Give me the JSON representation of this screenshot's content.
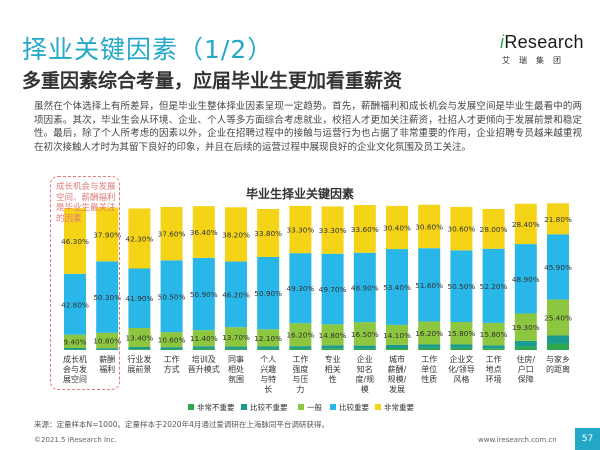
{
  "page": {
    "title": "择业关键因素（1/2）",
    "subtitle": "多重因素综合考量，应届毕业生更加看重薪资",
    "paragraph": "虽然在个体选择上有所差异，但是毕业生整体择业因素呈现一定趋势。首先，薪酬福利和成长机会与发展空间是毕业生最看中的两项因素。其次，毕业生会从环境、企业、个人等多方面综合考虑就业，校招人才更加关注薪资，社招人才更倾向于发展前景和稳定性。最后，除了个人所考虑的因素以外，企业在招聘过程中的接触与运营行为也占据了非常重要的作用，企业招聘专员越来越重视在初次接触人才时为其留下良好的印象，并且在后续的运营过程中展现良好的企业文化氛围及员工关注。",
    "highlight_note": "成长机会与发展空间、薪酬福利是毕业生最关注的因素",
    "source": "来源：定量样本N=1000。定量样本于2020年4月通过爱调研在上海脉同平台调研获得。",
    "copyright": "©2021.5 iResearch Inc.",
    "website": "www.iresearch.com.cn",
    "page_number": "57"
  },
  "logo": {
    "text_i": "i",
    "text_rest": "Research",
    "sub": "艾瑞集团"
  },
  "colors": {
    "非常不重要": "#2ea84e",
    "比较不重要": "#1a9b8f",
    "一般": "#8dc63f",
    "比较重要": "#29b6e8",
    "非常重要": "#f5d316",
    "title": "#23a8c8"
  },
  "chart_data": {
    "type": "bar",
    "stacked": true,
    "title": "毕业生择业关键因素",
    "ylim": [
      0,
      100
    ],
    "legend_position": "bottom",
    "categories": [
      "成长机会与发展空间",
      "薪酬福利",
      "行业发展前景",
      "工作方式",
      "培训及晋升模式",
      "同事相处氛围",
      "个人兴趣与特长",
      "工作强度与压力",
      "专业相关性",
      "企业知名度/规模",
      "城市薪酬/规模/发展",
      "工作单位性质",
      "企业文化/领导风格",
      "工作地点环境",
      "住房/户口保障",
      "与家乡的距离"
    ],
    "series": [
      {
        "name": "非常不重要",
        "values": [
          0.3,
          0.3,
          0.6,
          0.7,
          1.0,
          0.8,
          0.8,
          1.0,
          1.2,
          1.1,
          1.4,
          1.5,
          1.5,
          1.3,
          2.4,
          4.6
        ]
      },
      {
        "name": "比较不重要",
        "values": [
          1.1,
          1.0,
          1.5,
          1.3,
          1.6,
          1.6,
          1.7,
          1.7,
          2.1,
          2.0,
          2.2,
          2.4,
          2.4,
          2.0,
          4.0,
          5.6
        ]
      },
      {
        "name": "一般",
        "values": [
          9.4,
          10.8,
          13.4,
          10.6,
          11.4,
          13.7,
          12.1,
          16.2,
          14.8,
          16.5,
          14.1,
          16.2,
          15.8,
          15.8,
          19.3,
          25.4
        ]
      },
      {
        "name": "比较重要",
        "values": [
          42.8,
          50.3,
          41.9,
          50.5,
          50.9,
          46.2,
          50.9,
          49.3,
          49.7,
          48.9,
          53.4,
          51.6,
          50.5,
          52.2,
          48.9,
          45.9
        ]
      },
      {
        "name": "非常重要",
        "values": [
          46.3,
          37.9,
          42.3,
          37.6,
          36.4,
          38.2,
          33.8,
          33.3,
          33.3,
          33.6,
          30.4,
          30.6,
          30.6,
          28.0,
          28.4,
          21.8
        ]
      }
    ],
    "data_labels": [
      [
        "",
        "",
        "",
        "",
        "",
        "",
        "",
        "",
        "",
        "",
        "",
        "",
        "",
        "",
        "",
        ""
      ],
      [
        "",
        "",
        "",
        "",
        "",
        "",
        "",
        "",
        "",
        "",
        "",
        "",
        "",
        "",
        "",
        ""
      ],
      [
        "9.40%",
        "10.80%",
        "13.40%",
        "10.60%",
        "11.40%",
        "13.70%",
        "12.10%",
        "16.20%",
        "14.80%",
        "16.50%",
        "14.10%",
        "16.20%",
        "15.80%",
        "15.80%",
        "19.30%",
        "25.40%"
      ],
      [
        "42.80%",
        "50.30%",
        "41.90%",
        "50.50%",
        "50.90%",
        "46.20%",
        "50.90%",
        "49.30%",
        "49.70%",
        "48.90%",
        "53.40%",
        "51.60%",
        "50.50%",
        "52.20%",
        "48.90%",
        "45.90%"
      ],
      [
        "46.30%",
        "37.90%",
        "42.30%",
        "37.60%",
        "36.40%",
        "38.20%",
        "33.80%",
        "33.30%",
        "33.30%",
        "33.60%",
        "30.40%",
        "30.60%",
        "30.60%",
        "28.00%",
        "28.40%",
        "21.80%"
      ]
    ],
    "label_lines": [
      [
        "成长机",
        "会与发",
        "展空间"
      ],
      [
        "薪酬",
        "福利"
      ],
      [
        "行业发",
        "展前景"
      ],
      [
        "工作",
        "方式"
      ],
      [
        "培训及",
        "晋升模式"
      ],
      [
        "同事",
        "相处",
        "氛围"
      ],
      [
        "个人",
        "兴趣",
        "与特",
        "长"
      ],
      [
        "工作",
        "强度",
        "与压",
        "力"
      ],
      [
        "专业",
        "相关",
        "性"
      ],
      [
        "企业",
        "知名",
        "度/规",
        "模"
      ],
      [
        "城市",
        "薪酬/",
        "规模/",
        "发展"
      ],
      [
        "工作",
        "单位",
        "性质"
      ],
      [
        "企业文",
        "化/领导",
        "风格"
      ],
      [
        "工作",
        "地点",
        "环境"
      ],
      [
        "住房/",
        "户口",
        "保障"
      ],
      [
        "与家乡",
        "的距离"
      ]
    ]
  }
}
